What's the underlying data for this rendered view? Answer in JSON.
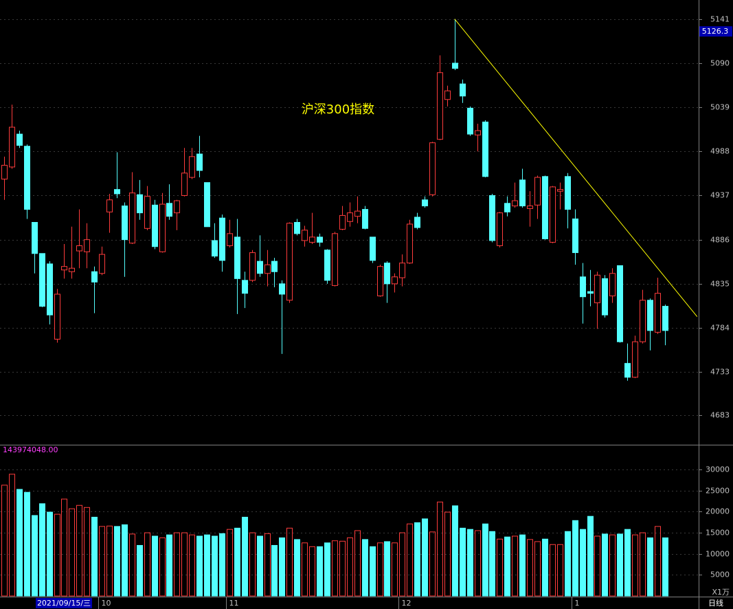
{
  "chart_data": {
    "type": "candlestick",
    "title": "沪深300指数",
    "cursor_price": 5126.3,
    "volume_label": "143974048.00",
    "volume_unit": "X1万",
    "period": "日线",
    "selected_date": "2021/09/15/三",
    "date_ticks": [
      {
        "index": 13,
        "label": "10"
      },
      {
        "index": 30,
        "label": "11"
      },
      {
        "index": 53,
        "label": "12"
      },
      {
        "index": 76,
        "label": "1"
      }
    ],
    "ylim": [
      4649,
      5163
    ],
    "yticks": [
      4683,
      4733,
      4784,
      4835,
      4886,
      4937,
      4988,
      5039,
      5090,
      5141
    ],
    "vlim": [
      0,
      35900
    ],
    "vticks": [
      5000,
      10000,
      15000,
      20000,
      25000,
      30000
    ],
    "up_color": "#ff3c3c",
    "down_color": "#54ffff",
    "trendline": {
      "from": [
        60,
        5141
      ],
      "to": [
        92.3,
        4797
      ],
      "color": "#ffff00"
    },
    "ohlc": [
      [
        4956,
        4982,
        4932,
        4972
      ],
      [
        4970,
        5042,
        4968,
        5016
      ],
      [
        5008,
        5012,
        4992,
        4995
      ],
      [
        4994,
        4996,
        4910,
        4921
      ],
      [
        4906,
        4906,
        4847,
        4870
      ],
      [
        4870,
        4870,
        4808,
        4809
      ],
      [
        4858,
        4861,
        4788,
        4799
      ],
      [
        4771,
        4829,
        4767,
        4823
      ],
      [
        4851,
        4881,
        4841,
        4855
      ],
      [
        4849,
        4901,
        4841,
        4853
      ],
      [
        4873,
        4921,
        4853,
        4879
      ],
      [
        4872,
        4905,
        4853,
        4886
      ],
      [
        4849,
        4855,
        4801,
        4837
      ],
      [
        4847,
        4878,
        4845,
        4869
      ],
      [
        4918,
        4939,
        4894,
        4932
      ],
      [
        4944,
        4987,
        4934,
        4939
      ],
      [
        4925,
        4929,
        4843,
        4886
      ],
      [
        4882,
        4964,
        4881,
        4940
      ],
      [
        4938,
        4955,
        4909,
        4917
      ],
      [
        4899,
        4948,
        4897,
        4936
      ],
      [
        4926,
        4932,
        4875,
        4878
      ],
      [
        4872,
        4940,
        4871,
        4927
      ],
      [
        4928,
        4950,
        4909,
        4913
      ],
      [
        4917,
        4932,
        4897,
        4931
      ],
      [
        4937,
        4992,
        4936,
        4963
      ],
      [
        4958,
        4992,
        4956,
        4982
      ],
      [
        4985,
        5006,
        4958,
        4966
      ],
      [
        4952,
        4952,
        4901,
        4901
      ],
      [
        4885,
        4905,
        4865,
        4867
      ],
      [
        4911,
        4915,
        4849,
        4862
      ],
      [
        4879,
        4909,
        4877,
        4893
      ],
      [
        4889,
        4910,
        4800,
        4841
      ],
      [
        4839,
        4849,
        4807,
        4824
      ],
      [
        4839,
        4874,
        4837,
        4871
      ],
      [
        4861,
        4891,
        4843,
        4847
      ],
      [
        4847,
        4874,
        4832,
        4857
      ],
      [
        4861,
        4865,
        4831,
        4849
      ],
      [
        4835,
        4839,
        4754,
        4823
      ],
      [
        4816,
        4906,
        4813,
        4905
      ],
      [
        4906,
        4910,
        4891,
        4893
      ],
      [
        4885,
        4902,
        4878,
        4897
      ],
      [
        4883,
        4917,
        4881,
        4889
      ],
      [
        4889,
        4893,
        4878,
        4883
      ],
      [
        4874,
        4875,
        4835,
        4839
      ],
      [
        4833,
        4895,
        4832,
        4893
      ],
      [
        4898,
        4925,
        4897,
        4914
      ],
      [
        4907,
        4929,
        4901,
        4917
      ],
      [
        4913,
        4936,
        4905,
        4919
      ],
      [
        4921,
        4925,
        4898,
        4899
      ],
      [
        4889,
        4889,
        4859,
        4862
      ],
      [
        4821,
        4857,
        4820,
        4855
      ],
      [
        4859,
        4861,
        4813,
        4835
      ],
      [
        4835,
        4847,
        4825,
        4843
      ],
      [
        4842,
        4869,
        4832,
        4859
      ],
      [
        4859,
        4909,
        4858,
        4904
      ],
      [
        4912,
        4917,
        4898,
        4900
      ],
      [
        4932,
        4936,
        4923,
        4925
      ],
      [
        4938,
        4999,
        4936,
        4998
      ],
      [
        5002,
        5099,
        5001,
        5079
      ],
      [
        5048,
        5064,
        5040,
        5058
      ],
      [
        5090,
        5141,
        5082,
        5084
      ],
      [
        5066,
        5071,
        5044,
        5052
      ],
      [
        5038,
        5040,
        5006,
        5008
      ],
      [
        5007,
        5020,
        4988,
        5012
      ],
      [
        5022,
        5024,
        4958,
        4959
      ],
      [
        4937,
        4939,
        4883,
        4885
      ],
      [
        4879,
        4918,
        4877,
        4917
      ],
      [
        4928,
        4936,
        4913,
        4918
      ],
      [
        4925,
        4952,
        4923,
        4931
      ],
      [
        4955,
        4968,
        4923,
        4925
      ],
      [
        4922,
        4942,
        4901,
        4925
      ],
      [
        4926,
        4960,
        4910,
        4958
      ],
      [
        4959,
        4960,
        4886,
        4887
      ],
      [
        4883,
        4948,
        4882,
        4947
      ],
      [
        4942,
        4952,
        4921,
        4944
      ],
      [
        4959,
        4963,
        4899,
        4921
      ],
      [
        4910,
        4921,
        4857,
        4871
      ],
      [
        4843,
        4859,
        4789,
        4820
      ],
      [
        4826,
        4851,
        4809,
        4824
      ],
      [
        4813,
        4849,
        4783,
        4845
      ],
      [
        4841,
        4845,
        4796,
        4799
      ],
      [
        4821,
        4853,
        4813,
        4847
      ],
      [
        4856,
        4856,
        4767,
        4768
      ],
      [
        4743,
        4766,
        4723,
        4727
      ],
      [
        4727,
        4775,
        4726,
        4768
      ],
      [
        4768,
        4828,
        4766,
        4816
      ],
      [
        4816,
        4818,
        4758,
        4781
      ],
      [
        4779,
        4842,
        4777,
        4824
      ],
      [
        4809,
        4811,
        4764,
        4781
      ]
    ],
    "volume": [
      26300,
      28900,
      25300,
      24600,
      19100,
      21900,
      19900,
      19400,
      23000,
      20700,
      21500,
      21000,
      18700,
      16500,
      16600,
      16500,
      16900,
      14700,
      12000,
      15000,
      14200,
      13800,
      14500,
      15000,
      15000,
      14500,
      14200,
      14500,
      14200,
      14800,
      15800,
      16100,
      18700,
      15000,
      14200,
      14800,
      12000,
      13800,
      16100,
      13400,
      12600,
      11700,
      11700,
      12600,
      13100,
      13000,
      13800,
      15500,
      13400,
      11700,
      12600,
      12900,
      12600,
      15000,
      17100,
      17400,
      18300,
      15200,
      22300,
      19900,
      21400,
      16100,
      15800,
      15500,
      17100,
      15300,
      13500,
      14000,
      14200,
      14500,
      13400,
      12900,
      13500,
      12200,
      12200,
      15300,
      17900,
      15800,
      18900,
      14200,
      14700,
      14500,
      14700,
      15800,
      14500,
      15000,
      13800,
      16500,
      13800
    ]
  }
}
